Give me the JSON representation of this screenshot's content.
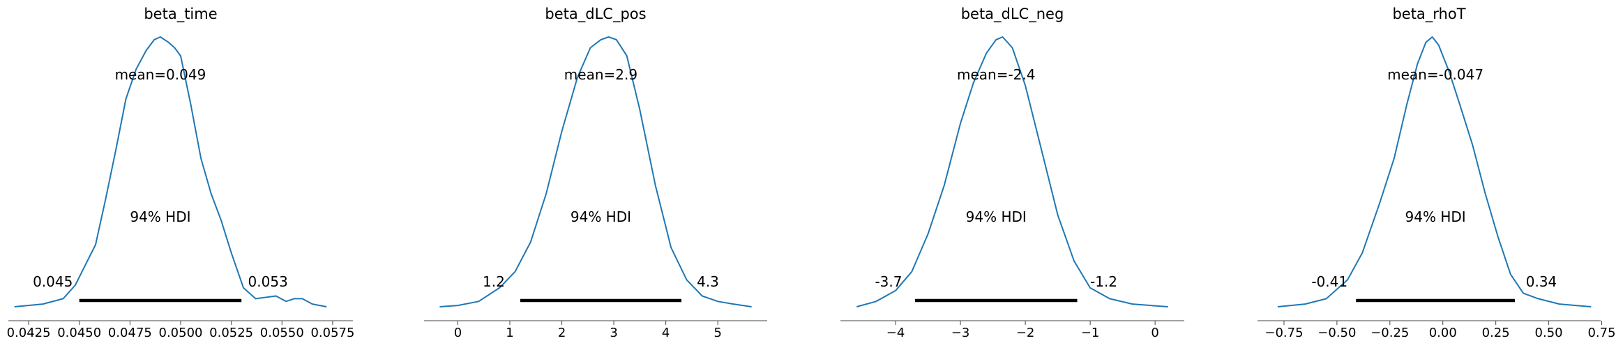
{
  "chart_data": [
    {
      "type": "line",
      "title": "beta_time",
      "mean_label": "mean=0.049",
      "hdi_label": "94% HDI",
      "hdi": [
        0.045,
        0.053
      ],
      "hdi_low_label": "0.045",
      "hdi_high_label": "0.053",
      "xlim": [
        0.0415,
        0.0585
      ],
      "ticks": [
        0.0425,
        0.045,
        0.0475,
        0.05,
        0.0525,
        0.055,
        0.0575
      ],
      "tick_labels": [
        "0.0425",
        "0.0450",
        "0.0475",
        "0.0500",
        "0.0525",
        "0.0550",
        "0.0575"
      ],
      "x": [
        0.0418,
        0.0432,
        0.0442,
        0.0448,
        0.0452,
        0.0458,
        0.0463,
        0.0468,
        0.0473,
        0.0478,
        0.0483,
        0.0487,
        0.049,
        0.0494,
        0.0497,
        0.05,
        0.0505,
        0.051,
        0.0515,
        0.052,
        0.0525,
        0.0531,
        0.0537,
        0.0542,
        0.0547,
        0.0552,
        0.0556,
        0.056,
        0.0565,
        0.0572
      ],
      "y": [
        0.0,
        0.01,
        0.03,
        0.08,
        0.14,
        0.23,
        0.4,
        0.58,
        0.77,
        0.88,
        0.95,
        0.99,
        1.0,
        0.98,
        0.96,
        0.93,
        0.75,
        0.55,
        0.42,
        0.32,
        0.2,
        0.07,
        0.03,
        0.035,
        0.04,
        0.02,
        0.03,
        0.03,
        0.01,
        0.0
      ]
    },
    {
      "type": "line",
      "title": "beta_dLC_pos",
      "mean_label": "mean=2.9",
      "hdi_label": "94% HDI",
      "hdi": [
        1.2,
        4.3
      ],
      "hdi_low_label": "1.2",
      "hdi_high_label": "4.3",
      "xlim": [
        -0.65,
        5.95
      ],
      "ticks": [
        0,
        1,
        2,
        3,
        4,
        5
      ],
      "tick_labels": [
        "0",
        "1",
        "2",
        "3",
        "4",
        "5"
      ],
      "x": [
        -0.35,
        0,
        0.4,
        0.8,
        1.1,
        1.4,
        1.7,
        2.0,
        2.3,
        2.55,
        2.75,
        2.9,
        3.05,
        3.25,
        3.5,
        3.8,
        4.1,
        4.4,
        4.7,
        5.0,
        5.3,
        5.65
      ],
      "y": [
        0.0,
        0.005,
        0.02,
        0.07,
        0.13,
        0.24,
        0.42,
        0.65,
        0.85,
        0.96,
        0.99,
        1.0,
        0.99,
        0.93,
        0.73,
        0.45,
        0.22,
        0.1,
        0.04,
        0.02,
        0.01,
        0.0
      ]
    },
    {
      "type": "line",
      "title": "beta_dLC_neg",
      "mean_label": "mean=-2.4",
      "hdi_label": "94% HDI",
      "hdi": [
        -3.7,
        -1.2
      ],
      "hdi_low_label": "-3.7",
      "hdi_high_label": "-1.2",
      "xlim": [
        -4.85,
        0.45
      ],
      "ticks": [
        -4,
        -3,
        -2,
        -1,
        0
      ],
      "tick_labels": [
        "−4",
        "−3",
        "−2",
        "−1",
        "0"
      ],
      "x": [
        -4.6,
        -4.3,
        -4.0,
        -3.75,
        -3.5,
        -3.25,
        -3.0,
        -2.8,
        -2.6,
        -2.45,
        -2.35,
        -2.2,
        -2.0,
        -1.75,
        -1.5,
        -1.25,
        -1.0,
        -0.7,
        -0.35,
        0.2
      ],
      "y": [
        0.0,
        0.02,
        0.06,
        0.13,
        0.27,
        0.45,
        0.68,
        0.83,
        0.94,
        0.99,
        1.0,
        0.96,
        0.82,
        0.58,
        0.34,
        0.17,
        0.07,
        0.03,
        0.01,
        0.0
      ]
    },
    {
      "type": "line",
      "title": "beta_rhoT",
      "mean_label": "mean=-0.047",
      "hdi_label": "94% HDI",
      "hdi": [
        -0.41,
        0.34
      ],
      "hdi_low_label": "-0.41",
      "hdi_high_label": "0.34",
      "xlim": [
        -0.875,
        0.745
      ],
      "ticks": [
        -0.75,
        -0.5,
        -0.25,
        0,
        0.25,
        0.5,
        0.75
      ],
      "tick_labels": [
        "−0.75",
        "−0.50",
        "−0.25",
        "0.00",
        "0.25",
        "0.50",
        "0.75"
      ],
      "x": [
        -0.78,
        -0.65,
        -0.55,
        -0.45,
        -0.38,
        -0.3,
        -0.23,
        -0.17,
        -0.12,
        -0.08,
        -0.05,
        -0.02,
        0.03,
        0.08,
        0.14,
        0.2,
        0.26,
        0.32,
        0.38,
        0.45,
        0.55,
        0.7
      ],
      "y": [
        0.0,
        0.01,
        0.03,
        0.1,
        0.2,
        0.38,
        0.55,
        0.75,
        0.9,
        0.98,
        1.0,
        0.97,
        0.87,
        0.75,
        0.6,
        0.42,
        0.26,
        0.12,
        0.05,
        0.03,
        0.01,
        0.0
      ]
    }
  ]
}
